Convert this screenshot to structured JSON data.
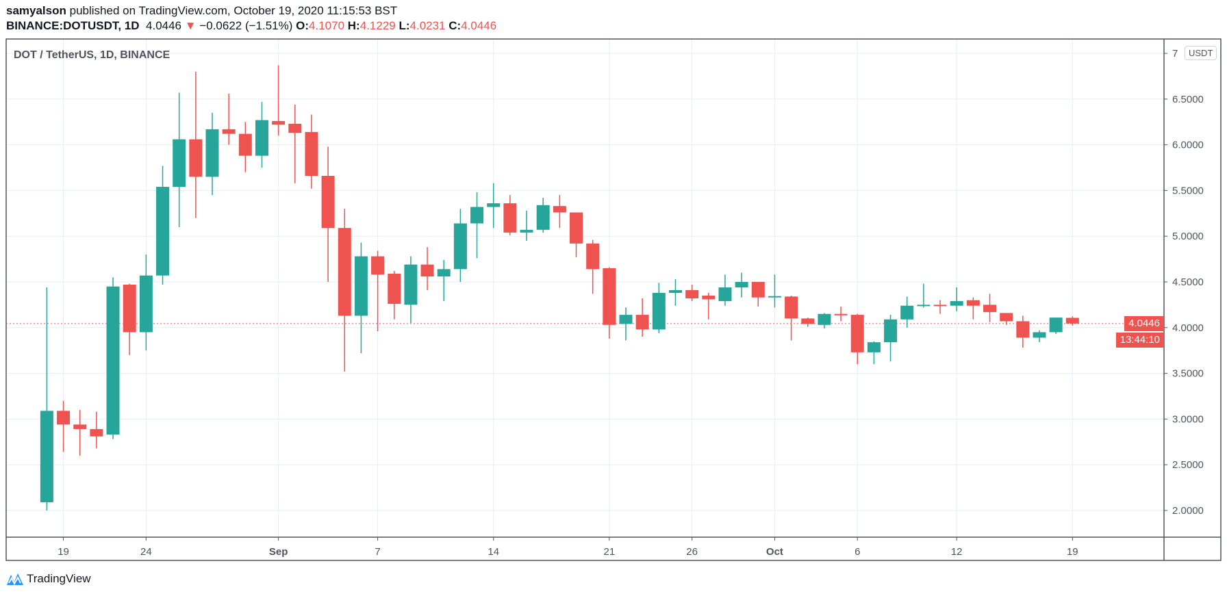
{
  "header": {
    "author": "samyalson",
    "published_text": "published on TradingView.com, October 19, 2020 11:15:53 BST",
    "symbol": "BINANCE:DOTUSDT, 1D",
    "last": "4.0446",
    "change": "−0.0622 (−1.51%)",
    "o_label": "O:",
    "o": "4.1070",
    "h_label": "H:",
    "h": "4.1229",
    "l_label": "L:",
    "l": "4.0231",
    "c_label": "C:",
    "c": "4.0446"
  },
  "legend": "DOT / TetherUS, 1D, BINANCE",
  "currency_badge": "USDT",
  "last_price_label": "4.0446",
  "countdown_label": "13:44:10",
  "footer_brand": "TradingView",
  "colors": {
    "up": "#26a69a",
    "down": "#ef5350",
    "grid": "#e6edf3",
    "axis": "#50535e"
  },
  "chart_data": {
    "type": "candlestick",
    "title": "DOT / TetherUS, 1D, BINANCE",
    "ylim": [
      1.75,
      7.0
    ],
    "y_ticks": [
      "7",
      "6.5000",
      "6.0000",
      "5.5000",
      "5.0000",
      "4.5000",
      "4.0000",
      "3.5000",
      "3.0000",
      "2.5000",
      "2.0000"
    ],
    "y_tick_values": [
      7,
      6.5,
      6,
      5.5,
      5,
      4.5,
      4,
      3.5,
      3,
      2.5,
      2
    ],
    "x_ticks": [
      {
        "label": "19",
        "day": 1
      },
      {
        "label": "24",
        "day": 6
      },
      {
        "label": "Sep",
        "day": 14
      },
      {
        "label": "7",
        "day": 20
      },
      {
        "label": "14",
        "day": 27
      },
      {
        "label": "21",
        "day": 34
      },
      {
        "label": "26",
        "day": 39
      },
      {
        "label": "Oct",
        "day": 44
      },
      {
        "label": "6",
        "day": 49
      },
      {
        "label": "12",
        "day": 55
      },
      {
        "label": "19",
        "day": 62
      }
    ],
    "start_date": "2020-08-18",
    "candles": [
      [
        2.09,
        4.44,
        2.0,
        3.09
      ],
      [
        3.09,
        3.2,
        2.64,
        2.94
      ],
      [
        2.94,
        3.1,
        2.6,
        2.89
      ],
      [
        2.89,
        3.08,
        2.68,
        2.81
      ],
      [
        2.83,
        4.55,
        2.78,
        4.45
      ],
      [
        4.47,
        4.48,
        3.7,
        3.95
      ],
      [
        3.95,
        4.8,
        3.75,
        4.57
      ],
      [
        4.57,
        5.77,
        4.47,
        5.54
      ],
      [
        5.54,
        6.57,
        5.1,
        6.06
      ],
      [
        6.06,
        6.8,
        5.2,
        5.65
      ],
      [
        5.65,
        6.35,
        5.45,
        6.17
      ],
      [
        6.17,
        6.56,
        6.0,
        6.12
      ],
      [
        6.12,
        6.25,
        5.7,
        5.88
      ],
      [
        5.88,
        6.47,
        5.75,
        6.27
      ],
      [
        6.26,
        6.87,
        6.1,
        6.22
      ],
      [
        6.23,
        6.44,
        5.58,
        6.13
      ],
      [
        6.14,
        6.33,
        5.52,
        5.66
      ],
      [
        5.66,
        5.98,
        4.5,
        5.09
      ],
      [
        5.09,
        5.3,
        3.52,
        4.13
      ],
      [
        4.13,
        4.93,
        3.72,
        4.78
      ],
      [
        4.78,
        4.84,
        3.96,
        4.58
      ],
      [
        4.59,
        4.62,
        4.09,
        4.26
      ],
      [
        4.25,
        4.78,
        4.05,
        4.69
      ],
      [
        4.69,
        4.88,
        4.41,
        4.56
      ],
      [
        4.56,
        4.74,
        4.29,
        4.64
      ],
      [
        4.64,
        5.3,
        4.5,
        5.14
      ],
      [
        5.14,
        5.48,
        4.76,
        5.32
      ],
      [
        5.32,
        5.58,
        5.09,
        5.36
      ],
      [
        5.36,
        5.45,
        5.01,
        5.04
      ],
      [
        5.04,
        5.28,
        4.95,
        5.07
      ],
      [
        5.07,
        5.42,
        5.04,
        5.34
      ],
      [
        5.33,
        5.45,
        5.09,
        5.26
      ],
      [
        5.26,
        5.26,
        4.77,
        4.92
      ],
      [
        4.92,
        4.96,
        4.37,
        4.64
      ],
      [
        4.65,
        4.66,
        3.88,
        4.03
      ],
      [
        4.04,
        4.22,
        3.86,
        4.14
      ],
      [
        4.14,
        4.32,
        3.9,
        3.98
      ],
      [
        3.98,
        4.49,
        3.94,
        4.38
      ],
      [
        4.38,
        4.53,
        4.24,
        4.41
      ],
      [
        4.41,
        4.47,
        4.29,
        4.32
      ],
      [
        4.35,
        4.38,
        4.09,
        4.31
      ],
      [
        4.29,
        4.58,
        4.24,
        4.44
      ],
      [
        4.44,
        4.6,
        4.33,
        4.5
      ],
      [
        4.5,
        4.5,
        4.23,
        4.33
      ],
      [
        4.34,
        4.58,
        4.22,
        4.345
      ],
      [
        4.34,
        4.35,
        3.86,
        4.1
      ],
      [
        4.1,
        4.11,
        4.01,
        4.04
      ],
      [
        4.03,
        4.16,
        3.99,
        4.15
      ],
      [
        4.15,
        4.23,
        4.07,
        4.14
      ],
      [
        4.14,
        4.15,
        3.6,
        3.73
      ],
      [
        3.73,
        3.85,
        3.6,
        3.84
      ],
      [
        3.84,
        4.14,
        3.63,
        4.09
      ],
      [
        4.09,
        4.34,
        4.0,
        4.24
      ],
      [
        4.24,
        4.48,
        4.22,
        4.25
      ],
      [
        4.25,
        4.3,
        4.15,
        4.24
      ],
      [
        4.24,
        4.44,
        4.18,
        4.29
      ],
      [
        4.3,
        4.33,
        4.09,
        4.24
      ],
      [
        4.25,
        4.37,
        4.06,
        4.17
      ],
      [
        4.16,
        4.16,
        4.03,
        4.07
      ],
      [
        4.07,
        4.13,
        3.78,
        3.89
      ],
      [
        3.89,
        3.97,
        3.84,
        3.95
      ],
      [
        3.95,
        4.11,
        3.93,
        4.11
      ],
      [
        4.107,
        4.1229,
        4.0231,
        4.0446
      ]
    ],
    "last_price": 4.0446
  }
}
